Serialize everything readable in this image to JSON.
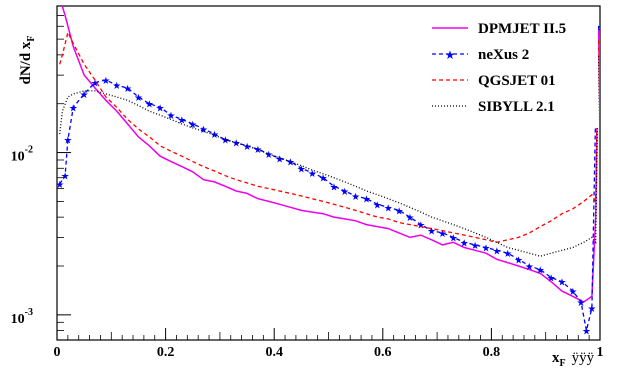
{
  "chart_data": {
    "type": "line",
    "title": "",
    "xlabel": "x",
    "xlabel_sub": "F",
    "xlabel_extra": "ÿÿÿ",
    "ylabel": "dN/d x",
    "ylabel_sub": "F",
    "xlim": [
      0,
      1
    ],
    "ylim": [
      0.0007,
      0.08
    ],
    "yscale": "log",
    "grid": false,
    "legend_position": "top-right",
    "x_ticks": [
      {
        "value": 0,
        "label": "0"
      },
      {
        "value": 0.2,
        "label": "0.2"
      },
      {
        "value": 0.4,
        "label": "0.4"
      },
      {
        "value": 0.6,
        "label": "0.6"
      },
      {
        "value": 0.8,
        "label": "0.8"
      },
      {
        "value": 1,
        "label": "1"
      }
    ],
    "y_ticks": [
      {
        "value": 0.01,
        "base": "10",
        "exponent": "-2"
      },
      {
        "value": 0.001,
        "base": "10",
        "exponent": "-3"
      }
    ],
    "series": [
      {
        "name": "DPMJET II.5",
        "color": "#ee00ee",
        "style": "solid",
        "marker": "none",
        "points": [
          [
            0.005,
            0.09
          ],
          [
            0.015,
            0.07
          ],
          [
            0.03,
            0.045
          ],
          [
            0.05,
            0.03
          ],
          [
            0.07,
            0.025
          ],
          [
            0.09,
            0.021
          ],
          [
            0.11,
            0.018
          ],
          [
            0.13,
            0.015
          ],
          [
            0.15,
            0.0125
          ],
          [
            0.17,
            0.011
          ],
          [
            0.19,
            0.0095
          ],
          [
            0.21,
            0.0088
          ],
          [
            0.23,
            0.0082
          ],
          [
            0.25,
            0.0076
          ],
          [
            0.27,
            0.0068
          ],
          [
            0.29,
            0.0066
          ],
          [
            0.31,
            0.0062
          ],
          [
            0.33,
            0.0058
          ],
          [
            0.35,
            0.0056
          ],
          [
            0.37,
            0.0052
          ],
          [
            0.39,
            0.005
          ],
          [
            0.41,
            0.0048
          ],
          [
            0.43,
            0.0046
          ],
          [
            0.45,
            0.0044
          ],
          [
            0.47,
            0.0043
          ],
          [
            0.49,
            0.0042
          ],
          [
            0.51,
            0.004
          ],
          [
            0.53,
            0.0039
          ],
          [
            0.55,
            0.0038
          ],
          [
            0.57,
            0.0036
          ],
          [
            0.59,
            0.0035
          ],
          [
            0.61,
            0.0034
          ],
          [
            0.63,
            0.0032
          ],
          [
            0.65,
            0.003
          ],
          [
            0.67,
            0.0031
          ],
          [
            0.69,
            0.0029
          ],
          [
            0.71,
            0.0027
          ],
          [
            0.73,
            0.0028
          ],
          [
            0.75,
            0.0026
          ],
          [
            0.77,
            0.0025
          ],
          [
            0.79,
            0.0024
          ],
          [
            0.81,
            0.0022
          ],
          [
            0.83,
            0.0021
          ],
          [
            0.85,
            0.002
          ],
          [
            0.87,
            0.0019
          ],
          [
            0.89,
            0.0018
          ],
          [
            0.91,
            0.0016
          ],
          [
            0.93,
            0.0014
          ],
          [
            0.95,
            0.0013
          ],
          [
            0.97,
            0.0012
          ],
          [
            0.985,
            0.0013
          ],
          [
            0.992,
            0.004
          ],
          [
            0.997,
            0.06
          ]
        ]
      },
      {
        "name": "neXus 2",
        "color": "#0000ff",
        "style": "dashed",
        "marker": "star",
        "points": [
          [
            0.005,
            0.0064
          ],
          [
            0.015,
            0.0072
          ],
          [
            0.02,
            0.012
          ],
          [
            0.03,
            0.019
          ],
          [
            0.05,
            0.023
          ],
          [
            0.07,
            0.027
          ],
          [
            0.09,
            0.028
          ],
          [
            0.11,
            0.026
          ],
          [
            0.13,
            0.025
          ],
          [
            0.15,
            0.022
          ],
          [
            0.17,
            0.02
          ],
          [
            0.19,
            0.019
          ],
          [
            0.21,
            0.017
          ],
          [
            0.23,
            0.016
          ],
          [
            0.25,
            0.015
          ],
          [
            0.27,
            0.014
          ],
          [
            0.29,
            0.013
          ],
          [
            0.31,
            0.012
          ],
          [
            0.33,
            0.0115
          ],
          [
            0.35,
            0.011
          ],
          [
            0.37,
            0.0105
          ],
          [
            0.39,
            0.0098
          ],
          [
            0.41,
            0.0092
          ],
          [
            0.43,
            0.0088
          ],
          [
            0.45,
            0.008
          ],
          [
            0.47,
            0.0075
          ],
          [
            0.49,
            0.007
          ],
          [
            0.51,
            0.0062
          ],
          [
            0.53,
            0.0058
          ],
          [
            0.55,
            0.0054
          ],
          [
            0.57,
            0.0052
          ],
          [
            0.59,
            0.0048
          ],
          [
            0.61,
            0.0046
          ],
          [
            0.63,
            0.0044
          ],
          [
            0.65,
            0.004
          ],
          [
            0.67,
            0.0036
          ],
          [
            0.69,
            0.0033
          ],
          [
            0.71,
            0.0032
          ],
          [
            0.73,
            0.003
          ],
          [
            0.75,
            0.0028
          ],
          [
            0.77,
            0.0027
          ],
          [
            0.79,
            0.0026
          ],
          [
            0.81,
            0.0025
          ],
          [
            0.83,
            0.0024
          ],
          [
            0.85,
            0.0022
          ],
          [
            0.87,
            0.002
          ],
          [
            0.89,
            0.0019
          ],
          [
            0.91,
            0.0017
          ],
          [
            0.93,
            0.0016
          ],
          [
            0.95,
            0.0014
          ],
          [
            0.965,
            0.0012
          ],
          [
            0.975,
            0.0008
          ],
          [
            0.985,
            0.0011
          ],
          [
            0.995,
            0.06
          ]
        ]
      },
      {
        "name": "QGSJET 01",
        "color": "#ff0000",
        "style": "dashed",
        "marker": "none",
        "points": [
          [
            0.005,
            0.035
          ],
          [
            0.01,
            0.04
          ],
          [
            0.02,
            0.055
          ],
          [
            0.03,
            0.047
          ],
          [
            0.05,
            0.035
          ],
          [
            0.07,
            0.028
          ],
          [
            0.09,
            0.022
          ],
          [
            0.11,
            0.019
          ],
          [
            0.13,
            0.016
          ],
          [
            0.15,
            0.014
          ],
          [
            0.17,
            0.0125
          ],
          [
            0.19,
            0.011
          ],
          [
            0.21,
            0.0102
          ],
          [
            0.23,
            0.0095
          ],
          [
            0.25,
            0.0088
          ],
          [
            0.27,
            0.0082
          ],
          [
            0.29,
            0.0077
          ],
          [
            0.31,
            0.0072
          ],
          [
            0.33,
            0.0068
          ],
          [
            0.35,
            0.0065
          ],
          [
            0.37,
            0.0062
          ],
          [
            0.39,
            0.006
          ],
          [
            0.41,
            0.0058
          ],
          [
            0.43,
            0.0056
          ],
          [
            0.45,
            0.0054
          ],
          [
            0.47,
            0.0052
          ],
          [
            0.49,
            0.005
          ],
          [
            0.51,
            0.0048
          ],
          [
            0.53,
            0.0046
          ],
          [
            0.55,
            0.0044
          ],
          [
            0.57,
            0.0042
          ],
          [
            0.59,
            0.004
          ],
          [
            0.61,
            0.0039
          ],
          [
            0.63,
            0.0037
          ],
          [
            0.65,
            0.0036
          ],
          [
            0.67,
            0.0035
          ],
          [
            0.69,
            0.0034
          ],
          [
            0.71,
            0.0033
          ],
          [
            0.73,
            0.0032
          ],
          [
            0.75,
            0.0031
          ],
          [
            0.77,
            0.003
          ],
          [
            0.79,
            0.0029
          ],
          [
            0.81,
            0.0028
          ],
          [
            0.83,
            0.0029
          ],
          [
            0.85,
            0.003
          ],
          [
            0.87,
            0.0032
          ],
          [
            0.89,
            0.0035
          ],
          [
            0.91,
            0.0038
          ],
          [
            0.93,
            0.0042
          ],
          [
            0.95,
            0.0045
          ],
          [
            0.97,
            0.005
          ],
          [
            0.985,
            0.0055
          ],
          [
            0.992,
            0.005
          ],
          [
            0.997,
            0.05
          ]
        ]
      },
      {
        "name": "SIBYLL 2.1",
        "color": "#000000",
        "style": "dotted",
        "marker": "none",
        "points": [
          [
            0.005,
            0.013
          ],
          [
            0.01,
            0.018
          ],
          [
            0.02,
            0.022
          ],
          [
            0.03,
            0.023
          ],
          [
            0.05,
            0.024
          ],
          [
            0.07,
            0.024
          ],
          [
            0.09,
            0.023
          ],
          [
            0.11,
            0.022
          ],
          [
            0.13,
            0.021
          ],
          [
            0.15,
            0.0195
          ],
          [
            0.17,
            0.018
          ],
          [
            0.19,
            0.017
          ],
          [
            0.21,
            0.016
          ],
          [
            0.23,
            0.015
          ],
          [
            0.25,
            0.0142
          ],
          [
            0.27,
            0.0135
          ],
          [
            0.29,
            0.0128
          ],
          [
            0.31,
            0.012
          ],
          [
            0.33,
            0.0115
          ],
          [
            0.35,
            0.011
          ],
          [
            0.37,
            0.0104
          ],
          [
            0.39,
            0.0098
          ],
          [
            0.41,
            0.0093
          ],
          [
            0.43,
            0.0088
          ],
          [
            0.45,
            0.0083
          ],
          [
            0.47,
            0.0078
          ],
          [
            0.49,
            0.0074
          ],
          [
            0.51,
            0.007
          ],
          [
            0.53,
            0.0066
          ],
          [
            0.55,
            0.0062
          ],
          [
            0.57,
            0.0058
          ],
          [
            0.59,
            0.0055
          ],
          [
            0.61,
            0.0052
          ],
          [
            0.63,
            0.0049
          ],
          [
            0.65,
            0.0046
          ],
          [
            0.67,
            0.0043
          ],
          [
            0.69,
            0.004
          ],
          [
            0.71,
            0.0038
          ],
          [
            0.73,
            0.0036
          ],
          [
            0.75,
            0.0034
          ],
          [
            0.77,
            0.0032
          ],
          [
            0.79,
            0.003
          ],
          [
            0.81,
            0.0028
          ],
          [
            0.83,
            0.0026
          ],
          [
            0.85,
            0.0025
          ],
          [
            0.87,
            0.0024
          ],
          [
            0.89,
            0.0023
          ],
          [
            0.91,
            0.0024
          ],
          [
            0.93,
            0.0025
          ],
          [
            0.95,
            0.0026
          ],
          [
            0.97,
            0.0028
          ],
          [
            0.985,
            0.003
          ],
          [
            0.992,
            0.0028
          ],
          [
            0.997,
            0.04
          ]
        ]
      }
    ]
  }
}
